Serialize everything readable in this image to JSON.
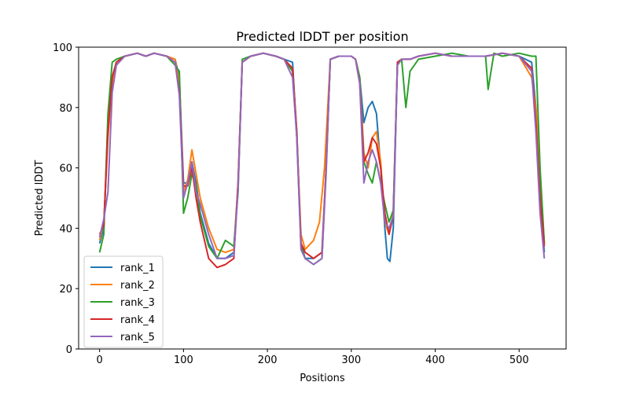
{
  "chart_data": {
    "type": "line",
    "title": "Predicted lDDT per position",
    "xlabel": "Positions",
    "ylabel": "Predicted lDDT",
    "xlim": [
      -25,
      556
    ],
    "ylim": [
      0,
      100
    ],
    "xticks": [
      0,
      100,
      200,
      300,
      400,
      500
    ],
    "yticks": [
      0,
      20,
      40,
      60,
      80,
      100
    ],
    "legend_position": "lower-left",
    "series": [
      {
        "name": "rank_1",
        "color": "#1f77b4",
        "x": [
          0,
          5,
          10,
          15,
          20,
          30,
          45,
          55,
          65,
          80,
          90,
          95,
          100,
          105,
          110,
          115,
          120,
          130,
          140,
          150,
          160,
          165,
          170,
          180,
          195,
          210,
          220,
          230,
          235,
          240,
          245,
          255,
          265,
          270,
          275,
          285,
          300,
          305,
          310,
          315,
          320,
          325,
          330,
          335,
          340,
          343,
          346,
          350,
          355,
          360,
          370,
          380,
          400,
          420,
          440,
          460,
          480,
          500,
          515,
          520,
          525,
          530
        ],
        "values": [
          35,
          40,
          75,
          90,
          95,
          97,
          98,
          97,
          98,
          97,
          96,
          90,
          55,
          55,
          62,
          55,
          45,
          35,
          30,
          30,
          32,
          55,
          95,
          97,
          98,
          97,
          96,
          95,
          70,
          35,
          30,
          30,
          32,
          60,
          96,
          97,
          97,
          96,
          90,
          75,
          80,
          82,
          78,
          60,
          40,
          30,
          29,
          40,
          95,
          96,
          96,
          97,
          98,
          97,
          97,
          97,
          98,
          97,
          95,
          80,
          50,
          32
        ]
      },
      {
        "name": "rank_2",
        "color": "#ff7f0e",
        "x": [
          0,
          5,
          10,
          15,
          20,
          30,
          45,
          55,
          65,
          80,
          90,
          95,
          100,
          105,
          110,
          115,
          120,
          130,
          140,
          150,
          160,
          165,
          170,
          180,
          195,
          210,
          220,
          230,
          235,
          240,
          245,
          255,
          262,
          268,
          275,
          285,
          300,
          305,
          310,
          315,
          320,
          325,
          330,
          335,
          340,
          345,
          350,
          355,
          360,
          370,
          380,
          400,
          420,
          440,
          460,
          480,
          500,
          515,
          520,
          525,
          530
        ],
        "values": [
          36,
          42,
          70,
          88,
          95,
          97,
          98,
          97,
          98,
          97,
          96,
          88,
          52,
          56,
          66,
          58,
          50,
          40,
          33,
          32,
          33,
          55,
          95,
          97,
          98,
          97,
          96,
          92,
          70,
          38,
          33,
          36,
          42,
          60,
          96,
          97,
          97,
          96,
          90,
          65,
          60,
          70,
          72,
          62,
          42,
          38,
          45,
          95,
          96,
          96,
          97,
          98,
          97,
          97,
          97,
          98,
          97,
          90,
          80,
          58,
          35
        ]
      },
      {
        "name": "rank_3",
        "color": "#2ca02c",
        "x": [
          0,
          5,
          10,
          15,
          20,
          30,
          45,
          55,
          65,
          80,
          90,
          95,
          100,
          105,
          110,
          115,
          120,
          130,
          140,
          150,
          160,
          165,
          170,
          180,
          195,
          210,
          220,
          230,
          235,
          240,
          245,
          255,
          265,
          270,
          275,
          285,
          300,
          305,
          310,
          315,
          320,
          325,
          330,
          335,
          340,
          345,
          350,
          355,
          360,
          365,
          370,
          380,
          400,
          420,
          440,
          460,
          463,
          470,
          480,
          500,
          515,
          520,
          525,
          530
        ],
        "values": [
          32,
          38,
          78,
          95,
          96,
          97,
          98,
          97,
          98,
          97,
          94,
          92,
          45,
          50,
          58,
          54,
          44,
          34,
          30,
          36,
          34,
          52,
          96,
          97,
          98,
          97,
          96,
          92,
          72,
          34,
          30,
          28,
          30,
          60,
          96,
          97,
          97,
          96,
          90,
          62,
          58,
          55,
          62,
          55,
          48,
          42,
          46,
          95,
          96,
          80,
          92,
          96,
          97,
          98,
          97,
          97,
          86,
          98,
          97,
          98,
          97,
          97,
          60,
          35
        ]
      },
      {
        "name": "rank_4",
        "color": "#d62728",
        "x": [
          0,
          5,
          10,
          15,
          20,
          30,
          45,
          55,
          65,
          80,
          90,
          95,
          100,
          105,
          110,
          115,
          120,
          130,
          140,
          150,
          160,
          165,
          170,
          180,
          195,
          210,
          220,
          230,
          235,
          240,
          245,
          255,
          265,
          270,
          275,
          285,
          300,
          305,
          310,
          315,
          320,
          325,
          330,
          335,
          340,
          345,
          350,
          355,
          360,
          370,
          380,
          400,
          420,
          440,
          460,
          480,
          500,
          515,
          520,
          525,
          530
        ],
        "values": [
          38,
          41,
          72,
          90,
          95,
          97,
          98,
          97,
          98,
          97,
          95,
          85,
          54,
          54,
          60,
          50,
          42,
          30,
          27,
          28,
          30,
          55,
          95,
          97,
          98,
          97,
          96,
          93,
          72,
          35,
          32,
          30,
          32,
          60,
          96,
          97,
          97,
          96,
          88,
          62,
          65,
          70,
          68,
          60,
          45,
          38,
          44,
          95,
          96,
          96,
          97,
          98,
          97,
          97,
          97,
          98,
          97,
          93,
          75,
          50,
          34
        ]
      },
      {
        "name": "rank_5",
        "color": "#9467bd",
        "x": [
          0,
          5,
          10,
          15,
          20,
          30,
          45,
          55,
          65,
          80,
          90,
          95,
          100,
          105,
          110,
          115,
          120,
          130,
          140,
          150,
          160,
          165,
          170,
          180,
          195,
          210,
          220,
          230,
          235,
          240,
          245,
          255,
          265,
          270,
          275,
          285,
          300,
          305,
          310,
          315,
          320,
          325,
          330,
          335,
          340,
          345,
          350,
          355,
          360,
          370,
          380,
          400,
          420,
          440,
          460,
          480,
          500,
          515,
          520,
          525,
          530
        ],
        "values": [
          37,
          43,
          52,
          85,
          94,
          97,
          98,
          97,
          98,
          97,
          95,
          84,
          50,
          55,
          62,
          52,
          48,
          38,
          30,
          30,
          31,
          53,
          95,
          97,
          98,
          97,
          96,
          90,
          70,
          33,
          30,
          28,
          30,
          58,
          96,
          97,
          97,
          96,
          88,
          55,
          62,
          66,
          62,
          55,
          42,
          40,
          44,
          94,
          96,
          96,
          97,
          98,
          97,
          97,
          97,
          98,
          97,
          92,
          72,
          45,
          30
        ]
      }
    ]
  }
}
